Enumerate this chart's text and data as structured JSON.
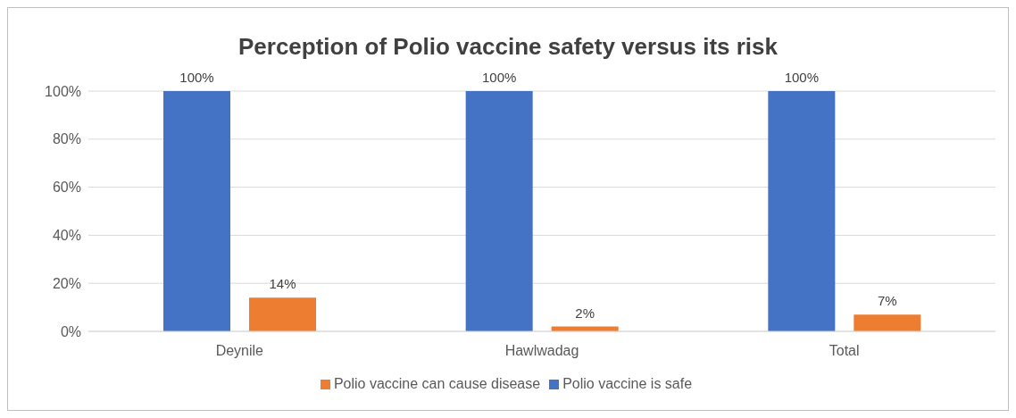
{
  "chart_data": {
    "type": "bar",
    "title": "Perception of Polio vaccine safety versus its risk",
    "categories": [
      "Deynile",
      "Hawlwadag",
      "Total"
    ],
    "series": [
      {
        "name": "Polio vaccine is safe",
        "color": "#4472c4",
        "values": [
          100,
          100,
          100
        ],
        "value_labels": [
          "100%",
          "100%",
          "100%"
        ]
      },
      {
        "name": "Polio vaccine can cause disease",
        "color": "#ed7d31",
        "values": [
          14,
          2,
          7
        ],
        "value_labels": [
          "14%",
          "2%",
          "7%"
        ]
      }
    ],
    "ylim": [
      0,
      100
    ],
    "yticks": [
      {
        "value": 0,
        "label": "0%"
      },
      {
        "value": 20,
        "label": "20%"
      },
      {
        "value": 40,
        "label": "40%"
      },
      {
        "value": 60,
        "label": "60%"
      },
      {
        "value": 80,
        "label": "80%"
      },
      {
        "value": 100,
        "label": "100%"
      }
    ],
    "grid": "y",
    "legend": "bottom"
  }
}
